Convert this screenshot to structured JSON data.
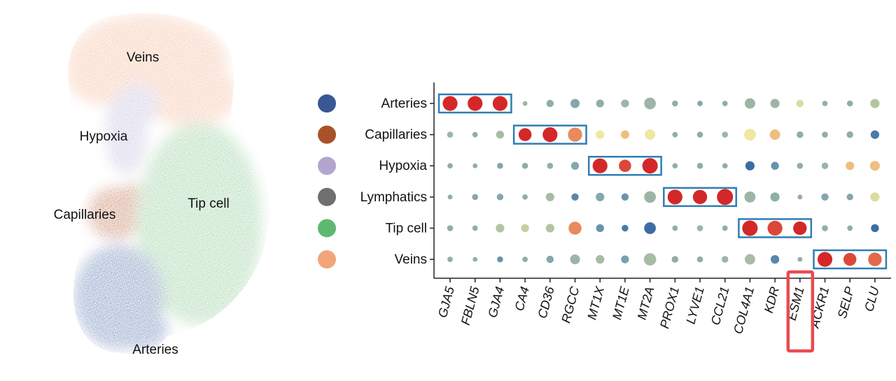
{
  "chart_data": [
    {
      "type": "scatter",
      "title": "",
      "clusters": [
        {
          "name": "Veins",
          "color": "#f0a880"
        },
        {
          "name": "Hypoxia",
          "color": "#b2a9d4"
        },
        {
          "name": "Capillaries",
          "color": "#b0532a"
        },
        {
          "name": "Tip cell",
          "color": "#74c07e"
        },
        {
          "name": "Arteries",
          "color": "#3a5b9e"
        }
      ]
    },
    {
      "type": "dot",
      "title": "",
      "cell_types": [
        "Arteries",
        "Capillaries",
        "Hypoxia",
        "Lymphatics",
        "Tip cell",
        "Veins"
      ],
      "cell_type_colors": [
        "#3a5795",
        "#a8522a",
        "#b3a5cf",
        "#6f6f6f",
        "#5fb86f",
        "#f2a579"
      ],
      "genes": [
        "GJA5",
        "FBLN5",
        "GJA4",
        "CA4",
        "CD36",
        "RGCC",
        "MT1X",
        "MT1E",
        "MT2A",
        "PROX1",
        "LYVE1",
        "CCL21",
        "COL4A1",
        "KDR",
        "ESM1",
        "ACKR1",
        "SELP",
        "CLU"
      ],
      "expression_scale": "-1 (blue) to 1 (red)",
      "size_scale": "fraction of cells expressing (0-1)",
      "highlighted_gene": "ESM1",
      "marker_boxes": [
        {
          "cell_type": "Arteries",
          "genes": [
            "GJA5",
            "FBLN5",
            "GJA4"
          ]
        },
        {
          "cell_type": "Capillaries",
          "genes": [
            "CA4",
            "CD36",
            "RGCC"
          ]
        },
        {
          "cell_type": "Hypoxia",
          "genes": [
            "MT1X",
            "MT1E",
            "MT2A"
          ]
        },
        {
          "cell_type": "Lymphatics",
          "genes": [
            "PROX1",
            "LYVE1",
            "CCL21"
          ]
        },
        {
          "cell_type": "Tip cell",
          "genes": [
            "COL4A1",
            "KDR",
            "ESM1"
          ]
        },
        {
          "cell_type": "Veins",
          "genes": [
            "ACKR1",
            "SELP",
            "CLU"
          ]
        }
      ],
      "size": [
        [
          0.9,
          0.9,
          0.9,
          0.1,
          0.3,
          0.45,
          0.35,
          0.35,
          0.65,
          0.2,
          0.15,
          0.15,
          0.55,
          0.45,
          0.3,
          0.15,
          0.2,
          0.45
        ],
        [
          0.2,
          0.15,
          0.35,
          0.75,
          0.9,
          0.85,
          0.4,
          0.4,
          0.55,
          0.15,
          0.2,
          0.2,
          0.65,
          0.55,
          0.25,
          0.2,
          0.25,
          0.4
        ],
        [
          0.15,
          0.1,
          0.2,
          0.2,
          0.2,
          0.35,
          0.9,
          0.7,
          0.95,
          0.15,
          0.2,
          0.15,
          0.45,
          0.35,
          0.2,
          0.25,
          0.4,
          0.5
        ],
        [
          0.1,
          0.2,
          0.25,
          0.15,
          0.4,
          0.3,
          0.4,
          0.3,
          0.65,
          0.9,
          0.85,
          1.0,
          0.6,
          0.45,
          0.1,
          0.3,
          0.25,
          0.45
        ],
        [
          0.2,
          0.15,
          0.4,
          0.35,
          0.4,
          0.75,
          0.35,
          0.25,
          0.65,
          0.15,
          0.2,
          0.15,
          0.95,
          0.9,
          0.8,
          0.2,
          0.15,
          0.35
        ],
        [
          0.15,
          0.1,
          0.2,
          0.15,
          0.3,
          0.5,
          0.4,
          0.35,
          0.7,
          0.25,
          0.2,
          0.25,
          0.55,
          0.4,
          0.1,
          0.9,
          0.75,
          0.8
        ]
      ],
      "expression": [
        [
          1.0,
          1.0,
          1.0,
          -0.2,
          -0.3,
          -0.4,
          -0.3,
          -0.2,
          -0.2,
          -0.3,
          -0.4,
          -0.3,
          -0.2,
          -0.2,
          0.2,
          -0.3,
          -0.3,
          0.0
        ],
        [
          -0.2,
          -0.3,
          -0.1,
          1.0,
          1.0,
          0.7,
          0.3,
          0.5,
          0.3,
          -0.3,
          -0.3,
          -0.2,
          0.3,
          0.5,
          -0.3,
          -0.3,
          -0.3,
          -0.8
        ],
        [
          -0.3,
          -0.3,
          -0.4,
          -0.3,
          -0.3,
          -0.4,
          1.0,
          0.9,
          1.0,
          -0.3,
          -0.3,
          -0.3,
          -0.9,
          -0.6,
          -0.3,
          -0.2,
          0.5,
          0.5
        ],
        [
          -0.3,
          -0.4,
          -0.4,
          -0.3,
          -0.1,
          -0.7,
          -0.4,
          -0.6,
          -0.2,
          1.0,
          1.0,
          1.0,
          -0.2,
          -0.3,
          -0.3,
          -0.4,
          -0.4,
          0.2
        ],
        [
          -0.3,
          -0.3,
          0.0,
          0.1,
          0.0,
          0.7,
          -0.6,
          -0.8,
          -0.9,
          -0.3,
          -0.2,
          -0.3,
          1.0,
          0.9,
          1.0,
          -0.3,
          -0.3,
          -0.9
        ],
        [
          -0.3,
          -0.3,
          -0.6,
          -0.3,
          -0.4,
          -0.2,
          -0.1,
          -0.5,
          -0.1,
          -0.3,
          -0.3,
          -0.2,
          -0.1,
          -0.7,
          -0.3,
          1.0,
          0.9,
          0.8
        ]
      ]
    }
  ]
}
